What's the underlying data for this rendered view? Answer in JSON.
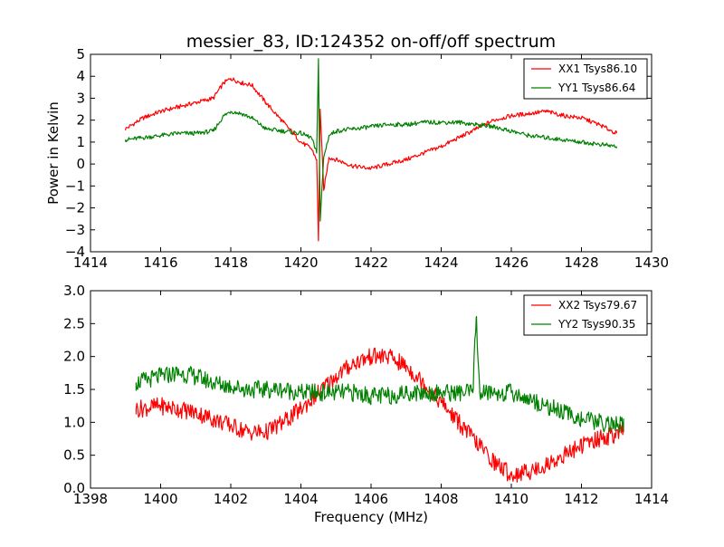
{
  "figure": {
    "title": "messier_83, ID:124352 on-off/off spectrum"
  },
  "chart_data": [
    {
      "type": "line",
      "title": "messier_83, ID:124352 on-off/off spectrum",
      "xlabel": "",
      "ylabel": "Power in Kelvin",
      "xlim": [
        1414,
        1430
      ],
      "ylim": [
        -4,
        5
      ],
      "xticks": [
        "1414",
        "1416",
        "1418",
        "1420",
        "1422",
        "1424",
        "1426",
        "1428",
        "1430"
      ],
      "yticks": [
        "−4",
        "−3",
        "−2",
        "−1",
        "0",
        "1",
        "2",
        "3",
        "4",
        "5"
      ],
      "grid": false,
      "legend_position": "top-right",
      "series": [
        {
          "name": "XX1 Tsys86.10",
          "color": "#ff0000",
          "x": [
            1415.0,
            1415.5,
            1416.0,
            1416.5,
            1417.0,
            1417.5,
            1417.8,
            1418.0,
            1418.3,
            1418.6,
            1419.0,
            1419.5,
            1420.0,
            1420.3,
            1420.45,
            1420.5,
            1420.55,
            1420.65,
            1420.8,
            1421.0,
            1421.5,
            1422.0,
            1422.5,
            1423.0,
            1423.5,
            1424.0,
            1424.5,
            1425.0,
            1425.5,
            1426.0,
            1426.5,
            1427.0,
            1427.5,
            1428.0,
            1428.5,
            1429.0
          ],
          "y": [
            1.6,
            2.1,
            2.4,
            2.6,
            2.8,
            3.0,
            3.7,
            3.9,
            3.7,
            3.6,
            2.8,
            1.9,
            1.0,
            0.7,
            0.2,
            -3.5,
            2.5,
            -1.2,
            0.3,
            0.2,
            -0.1,
            -0.2,
            0.0,
            0.2,
            0.5,
            0.8,
            1.2,
            1.6,
            2.0,
            2.2,
            2.3,
            2.4,
            2.2,
            2.1,
            1.8,
            1.4
          ]
        },
        {
          "name": "YY1 Tsys86.64",
          "color": "#008000",
          "x": [
            1415.0,
            1415.5,
            1416.0,
            1416.5,
            1417.0,
            1417.5,
            1417.8,
            1418.0,
            1418.3,
            1418.6,
            1419.0,
            1419.5,
            1420.0,
            1420.3,
            1420.45,
            1420.5,
            1420.55,
            1420.65,
            1420.8,
            1421.0,
            1421.5,
            1422.0,
            1422.5,
            1423.0,
            1423.5,
            1424.0,
            1424.5,
            1425.0,
            1425.5,
            1426.0,
            1426.5,
            1427.0,
            1427.5,
            1428.0,
            1428.5,
            1429.0
          ],
          "y": [
            1.1,
            1.2,
            1.3,
            1.4,
            1.4,
            1.5,
            2.2,
            2.4,
            2.3,
            2.1,
            1.6,
            1.5,
            1.4,
            1.2,
            0.5,
            4.8,
            -2.6,
            0.3,
            1.3,
            1.5,
            1.6,
            1.7,
            1.8,
            1.8,
            1.9,
            1.9,
            1.9,
            1.8,
            1.7,
            1.5,
            1.3,
            1.2,
            1.1,
            1.0,
            0.9,
            0.8
          ]
        }
      ]
    },
    {
      "type": "line",
      "title": "",
      "xlabel": "Frequency (MHz)",
      "ylabel": "",
      "xlim": [
        1398,
        1414
      ],
      "ylim": [
        0.0,
        3.0
      ],
      "xticks": [
        "1398",
        "1400",
        "1402",
        "1404",
        "1406",
        "1408",
        "1410",
        "1412",
        "1414"
      ],
      "yticks": [
        "0.0",
        "0.5",
        "1.0",
        "1.5",
        "2.0",
        "2.5",
        "3.0"
      ],
      "grid": false,
      "legend_position": "top-right",
      "series": [
        {
          "name": "XX2 Tsys79.67",
          "color": "#ff0000",
          "x": [
            1399.3,
            1400.0,
            1400.5,
            1401.0,
            1401.5,
            1402.0,
            1402.5,
            1403.0,
            1403.5,
            1404.0,
            1404.5,
            1405.0,
            1405.5,
            1406.0,
            1406.5,
            1407.0,
            1407.5,
            1408.0,
            1408.5,
            1409.0,
            1409.5,
            1410.0,
            1410.5,
            1411.0,
            1411.5,
            1412.0,
            1412.5,
            1413.2
          ],
          "y": [
            1.2,
            1.25,
            1.2,
            1.15,
            1.05,
            0.95,
            0.85,
            0.85,
            1.0,
            1.2,
            1.45,
            1.7,
            1.9,
            2.0,
            2.0,
            1.85,
            1.6,
            1.3,
            1.0,
            0.7,
            0.4,
            0.2,
            0.25,
            0.35,
            0.5,
            0.65,
            0.75,
            0.85
          ]
        },
        {
          "name": "YY2 Tsys90.35",
          "color": "#008000",
          "x": [
            1399.3,
            1400.0,
            1400.5,
            1401.0,
            1401.5,
            1402.0,
            1402.5,
            1403.0,
            1403.5,
            1404.0,
            1404.5,
            1405.0,
            1405.5,
            1406.0,
            1406.5,
            1407.0,
            1407.5,
            1408.0,
            1408.5,
            1408.9,
            1409.0,
            1409.1,
            1409.5,
            1410.0,
            1410.5,
            1411.0,
            1411.5,
            1412.0,
            1412.5,
            1413.2
          ],
          "y": [
            1.6,
            1.7,
            1.75,
            1.7,
            1.6,
            1.55,
            1.5,
            1.5,
            1.5,
            1.45,
            1.45,
            1.45,
            1.45,
            1.4,
            1.4,
            1.45,
            1.45,
            1.45,
            1.45,
            1.45,
            2.6,
            1.45,
            1.45,
            1.45,
            1.35,
            1.25,
            1.15,
            1.05,
            1.0,
            0.95
          ]
        }
      ]
    }
  ]
}
